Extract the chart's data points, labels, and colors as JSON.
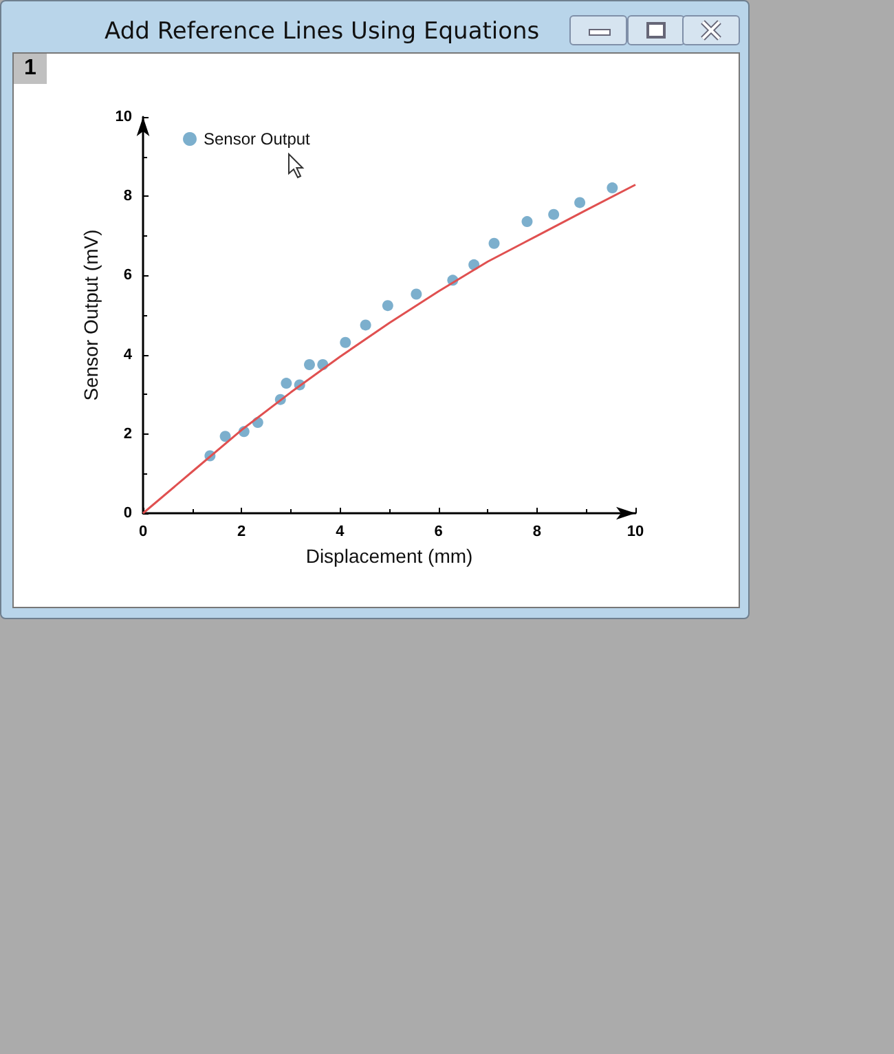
{
  "chart_data": {
    "type": "scatter",
    "title": "Add Reference Lines Using Equations",
    "annotations": [
      "1"
    ],
    "xlabel": "Displacement (mm)",
    "ylabel": "Sensor Output (mV)",
    "x": [
      1.36,
      1.67,
      2.05,
      2.33,
      2.79,
      2.91,
      3.18,
      3.38,
      3.65,
      4.11,
      4.52,
      4.97,
      5.55,
      6.29,
      6.72,
      7.13,
      7.8,
      8.34,
      8.87,
      9.53
    ],
    "series": [
      {
        "name": "Sensor Output",
        "type": "scatter",
        "marker": "circle",
        "color": "#5b9bc0",
        "values": [
          1.45,
          1.94,
          2.06,
          2.29,
          2.87,
          3.28,
          3.24,
          3.75,
          3.75,
          4.31,
          4.75,
          5.24,
          5.53,
          5.88,
          6.27,
          6.81,
          7.36,
          7.54,
          7.84,
          8.21
        ]
      },
      {
        "type": "line",
        "color": "#e05050",
        "x": [
          0,
          1,
          2,
          3,
          4,
          5,
          6,
          7,
          8,
          9,
          10
        ],
        "values": [
          0,
          1.05,
          2.1,
          3.05,
          3.95,
          4.8,
          5.6,
          6.35,
          7.0,
          7.65,
          8.29
        ]
      }
    ],
    "xlim": [
      0,
      10
    ],
    "xticks": [
      0,
      2,
      4,
      6,
      8,
      10
    ],
    "ylim": [
      0,
      10
    ],
    "yticks": [
      0,
      2,
      4,
      6,
      8,
      10
    ],
    "legend": "top left",
    "grid": false
  }
}
